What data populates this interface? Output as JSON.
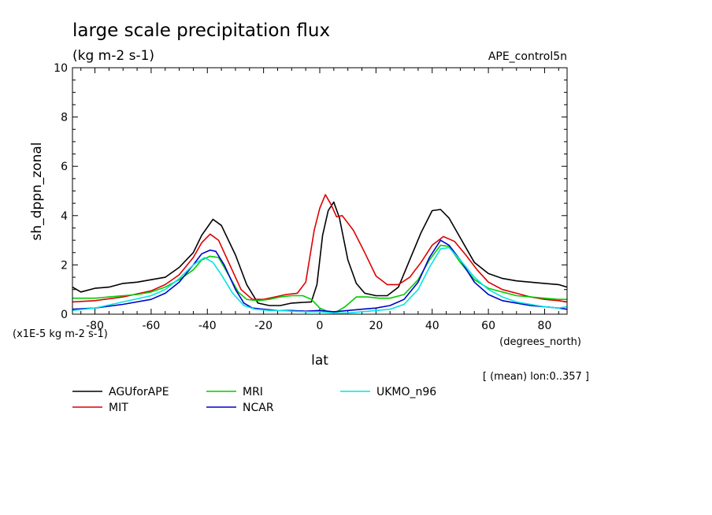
{
  "chart_data": {
    "type": "line",
    "title": "large scale precipitation flux",
    "subtitle": "(kg m-2 s-1)",
    "dataset_label": "APE_control5n",
    "xlabel": "lat",
    "x_units": "(degrees_north)",
    "ylabel": "sh_dppn_zonal",
    "y_scale_note": "(x1E-5 kg m-2 s-1)",
    "footnote": "[ (mean) lon:0..357 ]",
    "xlim": [
      -88,
      88
    ],
    "ylim": [
      0,
      10
    ],
    "x_ticks": [
      -80,
      -60,
      -40,
      -20,
      0,
      20,
      40,
      60,
      80
    ],
    "x_tick_labels": [
      "-80",
      "-60",
      "-40",
      "-20",
      "0",
      "20",
      "40",
      "60",
      "80"
    ],
    "y_ticks": [
      0,
      2,
      4,
      6,
      8,
      10
    ],
    "y_tick_labels": [
      "0",
      "2",
      "4",
      "6",
      "8",
      "10"
    ],
    "legend_placement": "below",
    "series": [
      {
        "name": "AGUforAPE",
        "color": "#000000",
        "points": [
          [
            -88,
            1.1
          ],
          [
            -85,
            0.9
          ],
          [
            -80,
            1.05
          ],
          [
            -75,
            1.1
          ],
          [
            -70,
            1.25
          ],
          [
            -65,
            1.3
          ],
          [
            -60,
            1.4
          ],
          [
            -55,
            1.5
          ],
          [
            -50,
            1.9
          ],
          [
            -45,
            2.5
          ],
          [
            -42,
            3.2
          ],
          [
            -38,
            3.85
          ],
          [
            -35,
            3.6
          ],
          [
            -30,
            2.4
          ],
          [
            -26,
            1.2
          ],
          [
            -22,
            0.45
          ],
          [
            -18,
            0.35
          ],
          [
            -14,
            0.35
          ],
          [
            -10,
            0.45
          ],
          [
            -6,
            0.48
          ],
          [
            -3,
            0.5
          ],
          [
            -1,
            1.2
          ],
          [
            1,
            3.2
          ],
          [
            3,
            4.2
          ],
          [
            5,
            4.55
          ],
          [
            7,
            3.9
          ],
          [
            10,
            2.2
          ],
          [
            13,
            1.25
          ],
          [
            16,
            0.85
          ],
          [
            20,
            0.75
          ],
          [
            24,
            0.75
          ],
          [
            28,
            1.1
          ],
          [
            32,
            2.2
          ],
          [
            36,
            3.3
          ],
          [
            40,
            4.2
          ],
          [
            43,
            4.25
          ],
          [
            46,
            3.9
          ],
          [
            50,
            3.1
          ],
          [
            55,
            2.1
          ],
          [
            60,
            1.65
          ],
          [
            65,
            1.45
          ],
          [
            70,
            1.35
          ],
          [
            75,
            1.3
          ],
          [
            80,
            1.25
          ],
          [
            85,
            1.2
          ],
          [
            88,
            1.1
          ]
        ]
      },
      {
        "name": "MIT",
        "color": "#dd0000",
        "points": [
          [
            -88,
            0.5
          ],
          [
            -80,
            0.55
          ],
          [
            -70,
            0.7
          ],
          [
            -60,
            0.95
          ],
          [
            -55,
            1.2
          ],
          [
            -50,
            1.6
          ],
          [
            -45,
            2.3
          ],
          [
            -42,
            2.9
          ],
          [
            -39,
            3.25
          ],
          [
            -36,
            3.0
          ],
          [
            -32,
            2.0
          ],
          [
            -28,
            1.0
          ],
          [
            -24,
            0.6
          ],
          [
            -20,
            0.6
          ],
          [
            -16,
            0.7
          ],
          [
            -12,
            0.8
          ],
          [
            -8,
            0.85
          ],
          [
            -5,
            1.3
          ],
          [
            -2,
            3.4
          ],
          [
            0,
            4.3
          ],
          [
            2,
            4.85
          ],
          [
            4,
            4.45
          ],
          [
            6,
            3.95
          ],
          [
            8,
            4.0
          ],
          [
            12,
            3.4
          ],
          [
            16,
            2.5
          ],
          [
            20,
            1.55
          ],
          [
            24,
            1.2
          ],
          [
            28,
            1.2
          ],
          [
            32,
            1.5
          ],
          [
            36,
            2.1
          ],
          [
            40,
            2.8
          ],
          [
            44,
            3.15
          ],
          [
            48,
            2.95
          ],
          [
            52,
            2.4
          ],
          [
            56,
            1.8
          ],
          [
            60,
            1.3
          ],
          [
            65,
            1.0
          ],
          [
            70,
            0.85
          ],
          [
            75,
            0.7
          ],
          [
            80,
            0.6
          ],
          [
            85,
            0.55
          ],
          [
            88,
            0.5
          ]
        ]
      },
      {
        "name": "MRI",
        "color": "#00cc00",
        "points": [
          [
            -88,
            0.65
          ],
          [
            -80,
            0.65
          ],
          [
            -75,
            0.7
          ],
          [
            -70,
            0.75
          ],
          [
            -65,
            0.8
          ],
          [
            -60,
            0.9
          ],
          [
            -55,
            1.1
          ],
          [
            -50,
            1.4
          ],
          [
            -45,
            1.8
          ],
          [
            -42,
            2.2
          ],
          [
            -39,
            2.35
          ],
          [
            -36,
            2.3
          ],
          [
            -33,
            1.7
          ],
          [
            -29,
            0.9
          ],
          [
            -26,
            0.6
          ],
          [
            -22,
            0.55
          ],
          [
            -18,
            0.6
          ],
          [
            -14,
            0.7
          ],
          [
            -10,
            0.75
          ],
          [
            -6,
            0.75
          ],
          [
            -3,
            0.6
          ],
          [
            0,
            0.25
          ],
          [
            3,
            0.1
          ],
          [
            6,
            0.1
          ],
          [
            9,
            0.3
          ],
          [
            13,
            0.7
          ],
          [
            17,
            0.7
          ],
          [
            21,
            0.65
          ],
          [
            25,
            0.65
          ],
          [
            30,
            0.8
          ],
          [
            35,
            1.4
          ],
          [
            39,
            2.2
          ],
          [
            43,
            2.8
          ],
          [
            46,
            2.75
          ],
          [
            50,
            2.1
          ],
          [
            55,
            1.4
          ],
          [
            60,
            1.05
          ],
          [
            65,
            0.9
          ],
          [
            70,
            0.75
          ],
          [
            75,
            0.7
          ],
          [
            80,
            0.65
          ],
          [
            85,
            0.6
          ],
          [
            88,
            0.6
          ]
        ]
      },
      {
        "name": "NCAR",
        "color": "#0000cc",
        "points": [
          [
            -88,
            0.2
          ],
          [
            -80,
            0.25
          ],
          [
            -70,
            0.4
          ],
          [
            -60,
            0.6
          ],
          [
            -55,
            0.85
          ],
          [
            -50,
            1.3
          ],
          [
            -45,
            2.0
          ],
          [
            -42,
            2.45
          ],
          [
            -39,
            2.6
          ],
          [
            -37,
            2.55
          ],
          [
            -34,
            2.0
          ],
          [
            -30,
            1.0
          ],
          [
            -27,
            0.45
          ],
          [
            -24,
            0.25
          ],
          [
            -20,
            0.2
          ],
          [
            -15,
            0.15
          ],
          [
            -10,
            0.15
          ],
          [
            -5,
            0.12
          ],
          [
            0,
            0.15
          ],
          [
            5,
            0.1
          ],
          [
            10,
            0.15
          ],
          [
            15,
            0.2
          ],
          [
            20,
            0.25
          ],
          [
            25,
            0.35
          ],
          [
            30,
            0.6
          ],
          [
            35,
            1.3
          ],
          [
            39,
            2.3
          ],
          [
            43,
            3.0
          ],
          [
            46,
            2.8
          ],
          [
            50,
            2.2
          ],
          [
            55,
            1.3
          ],
          [
            60,
            0.8
          ],
          [
            65,
            0.55
          ],
          [
            70,
            0.45
          ],
          [
            75,
            0.35
          ],
          [
            80,
            0.3
          ],
          [
            85,
            0.25
          ],
          [
            88,
            0.2
          ]
        ]
      },
      {
        "name": "UKMO_n96",
        "color": "#00e5e5",
        "points": [
          [
            -88,
            0.15
          ],
          [
            -80,
            0.25
          ],
          [
            -70,
            0.5
          ],
          [
            -60,
            0.75
          ],
          [
            -55,
            1.0
          ],
          [
            -50,
            1.45
          ],
          [
            -45,
            2.0
          ],
          [
            -41,
            2.3
          ],
          [
            -38,
            2.1
          ],
          [
            -35,
            1.6
          ],
          [
            -31,
            0.85
          ],
          [
            -27,
            0.35
          ],
          [
            -23,
            0.2
          ],
          [
            -18,
            0.15
          ],
          [
            -14,
            0.15
          ],
          [
            -10,
            0.12
          ],
          [
            -5,
            0.1
          ],
          [
            0,
            0.1
          ],
          [
            5,
            0.05
          ],
          [
            10,
            0.05
          ],
          [
            15,
            0.1
          ],
          [
            20,
            0.15
          ],
          [
            25,
            0.2
          ],
          [
            30,
            0.4
          ],
          [
            35,
            1.0
          ],
          [
            39,
            1.9
          ],
          [
            43,
            2.65
          ],
          [
            46,
            2.7
          ],
          [
            50,
            2.2
          ],
          [
            55,
            1.5
          ],
          [
            60,
            1.0
          ],
          [
            65,
            0.7
          ],
          [
            70,
            0.5
          ],
          [
            75,
            0.4
          ],
          [
            80,
            0.3
          ],
          [
            85,
            0.25
          ],
          [
            88,
            0.3
          ]
        ]
      }
    ]
  }
}
